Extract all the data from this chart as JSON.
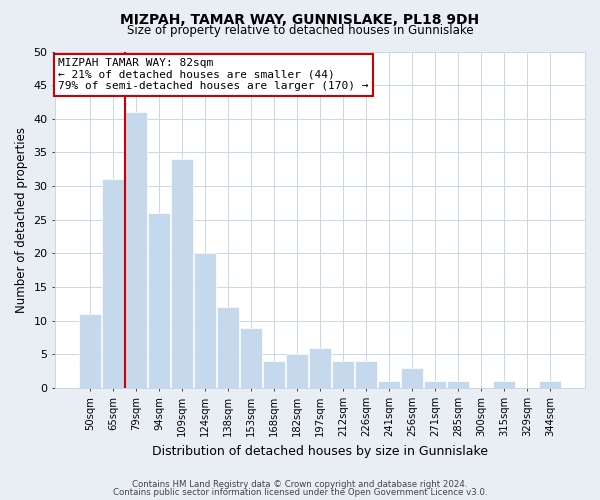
{
  "title": "MIZPAH, TAMAR WAY, GUNNISLAKE, PL18 9DH",
  "subtitle": "Size of property relative to detached houses in Gunnislake",
  "xlabel": "Distribution of detached houses by size in Gunnislake",
  "ylabel": "Number of detached properties",
  "bar_color": "#c5d8ec",
  "vline_color": "#cc0000",
  "bin_labels": [
    "50sqm",
    "65sqm",
    "79sqm",
    "94sqm",
    "109sqm",
    "124sqm",
    "138sqm",
    "153sqm",
    "168sqm",
    "182sqm",
    "197sqm",
    "212sqm",
    "226sqm",
    "241sqm",
    "256sqm",
    "271sqm",
    "285sqm",
    "300sqm",
    "315sqm",
    "329sqm",
    "344sqm"
  ],
  "bar_heights": [
    11,
    31,
    41,
    26,
    34,
    20,
    12,
    9,
    4,
    5,
    6,
    4,
    4,
    1,
    3,
    1,
    1,
    0,
    1,
    0,
    1
  ],
  "vline_bar_index": 2,
  "ylim": [
    0,
    50
  ],
  "yticks": [
    0,
    5,
    10,
    15,
    20,
    25,
    30,
    35,
    40,
    45,
    50
  ],
  "annotation_text_line1": "MIZPAH TAMAR WAY: 82sqm",
  "annotation_text_line2": "← 21% of detached houses are smaller (44)",
  "annotation_text_line3": "79% of semi-detached houses are larger (170) →",
  "footer_line1": "Contains HM Land Registry data © Crown copyright and database right 2024.",
  "footer_line2": "Contains public sector information licensed under the Open Government Licence v3.0.",
  "background_color": "#e8eef4",
  "plot_background": "#ffffff",
  "grid_color": "#c8d8e8"
}
